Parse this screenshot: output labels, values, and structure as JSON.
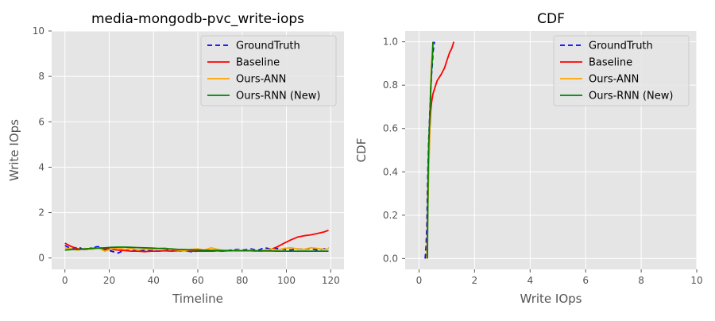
{
  "colors": {
    "plot_bg": "#E5E5E5",
    "grid": "#FFFFFF",
    "tick_text": "#555555",
    "label_text": "#555555",
    "title_text": "#000000",
    "legend_bg": "#E5E5E5",
    "legend_border": "#CCCCCC"
  },
  "chart_data": [
    {
      "type": "line",
      "title": "media-mongodb-pvc_write-iops",
      "xlabel": "Timeline",
      "ylabel": "Write IOps",
      "xlim": [
        -6,
        126
      ],
      "ylim": [
        -0.5,
        10
      ],
      "xticks": [
        0,
        20,
        40,
        60,
        80,
        100,
        120
      ],
      "yticks": [
        0,
        2,
        4,
        6,
        8,
        10
      ],
      "grid": true,
      "legend_position": "top-right",
      "series": [
        {
          "name": "GroundTruth",
          "color": "#0000FF",
          "style": "dashed",
          "x": [
            0,
            3,
            6,
            9,
            12,
            15,
            18,
            21,
            24,
            27,
            30,
            33,
            36,
            39,
            42,
            45,
            48,
            51,
            54,
            57,
            60,
            63,
            66,
            69,
            72,
            75,
            78,
            81,
            84,
            87,
            90,
            93,
            96,
            99,
            102,
            105,
            108,
            111,
            114,
            117,
            119
          ],
          "y": [
            0.55,
            0.4,
            0.48,
            0.35,
            0.45,
            0.5,
            0.38,
            0.3,
            0.22,
            0.35,
            0.3,
            0.38,
            0.32,
            0.35,
            0.3,
            0.32,
            0.35,
            0.3,
            0.33,
            0.28,
            0.3,
            0.35,
            0.3,
            0.32,
            0.3,
            0.35,
            0.38,
            0.35,
            0.4,
            0.33,
            0.45,
            0.4,
            0.42,
            0.38,
            0.35,
            0.4,
            0.38,
            0.42,
            0.35,
            0.4,
            0.45
          ]
        },
        {
          "name": "Baseline",
          "color": "#FF0000",
          "style": "solid",
          "x": [
            0,
            3,
            6,
            9,
            12,
            15,
            18,
            21,
            24,
            27,
            30,
            33,
            36,
            39,
            42,
            45,
            48,
            51,
            54,
            57,
            60,
            63,
            66,
            69,
            72,
            75,
            78,
            81,
            84,
            87,
            90,
            93,
            96,
            99,
            102,
            105,
            108,
            111,
            114,
            117,
            119
          ],
          "y": [
            0.65,
            0.5,
            0.4,
            0.38,
            0.42,
            0.45,
            0.42,
            0.38,
            0.35,
            0.33,
            0.3,
            0.3,
            0.28,
            0.3,
            0.3,
            0.32,
            0.3,
            0.32,
            0.32,
            0.3,
            0.3,
            0.3,
            0.3,
            0.32,
            0.3,
            0.32,
            0.32,
            0.33,
            0.32,
            0.3,
            0.32,
            0.38,
            0.5,
            0.65,
            0.8,
            0.92,
            0.98,
            1.02,
            1.08,
            1.15,
            1.22
          ]
        },
        {
          "name": "Ours-ANN",
          "color": "#FFA500",
          "style": "solid",
          "x": [
            0,
            3,
            6,
            9,
            12,
            15,
            18,
            21,
            24,
            27,
            30,
            33,
            36,
            39,
            42,
            45,
            48,
            51,
            54,
            57,
            60,
            63,
            66,
            69,
            72,
            75,
            78,
            81,
            84,
            87,
            90,
            93,
            96,
            99,
            102,
            105,
            108,
            111,
            114,
            117,
            119
          ],
          "y": [
            0.45,
            0.4,
            0.35,
            0.42,
            0.38,
            0.45,
            0.3,
            0.4,
            0.45,
            0.38,
            0.42,
            0.35,
            0.4,
            0.38,
            0.42,
            0.45,
            0.38,
            0.35,
            0.32,
            0.38,
            0.4,
            0.35,
            0.45,
            0.38,
            0.32,
            0.3,
            0.35,
            0.32,
            0.35,
            0.3,
            0.35,
            0.4,
            0.35,
            0.42,
            0.45,
            0.4,
            0.38,
            0.45,
            0.42,
            0.38,
            0.4
          ]
        },
        {
          "name": "Ours-RNN (New)",
          "color": "#008000",
          "style": "solid",
          "x": [
            0,
            3,
            6,
            9,
            12,
            15,
            18,
            21,
            24,
            27,
            30,
            33,
            36,
            39,
            42,
            45,
            48,
            51,
            54,
            57,
            60,
            63,
            66,
            69,
            72,
            75,
            78,
            81,
            84,
            87,
            90,
            93,
            96,
            99,
            102,
            105,
            108,
            111,
            114,
            117,
            119
          ],
          "y": [
            0.35,
            0.37,
            0.38,
            0.4,
            0.42,
            0.43,
            0.45,
            0.47,
            0.48,
            0.48,
            0.47,
            0.46,
            0.45,
            0.44,
            0.42,
            0.41,
            0.4,
            0.38,
            0.37,
            0.36,
            0.35,
            0.34,
            0.34,
            0.33,
            0.33,
            0.33,
            0.32,
            0.32,
            0.32,
            0.32,
            0.31,
            0.31,
            0.3,
            0.3,
            0.3,
            0.3,
            0.3,
            0.3,
            0.3,
            0.3,
            0.3
          ]
        }
      ]
    },
    {
      "type": "line",
      "title": "CDF",
      "xlabel": "Write IOps",
      "ylabel": "CDF",
      "xlim": [
        -0.5,
        10
      ],
      "ylim": [
        -0.05,
        1.05
      ],
      "xticks": [
        0,
        2,
        4,
        6,
        8,
        10
      ],
      "yticks": [
        0.0,
        0.2,
        0.4,
        0.6,
        0.8,
        1.0
      ],
      "grid": true,
      "legend_position": "top-right",
      "series": [
        {
          "name": "GroundTruth",
          "color": "#0000FF",
          "style": "dashed",
          "x": [
            0.22,
            0.25,
            0.28,
            0.3,
            0.32,
            0.35,
            0.38,
            0.4,
            0.42,
            0.45,
            0.48,
            0.5,
            0.55
          ],
          "y": [
            0.0,
            0.05,
            0.15,
            0.3,
            0.42,
            0.55,
            0.65,
            0.72,
            0.78,
            0.85,
            0.9,
            0.95,
            1.0
          ]
        },
        {
          "name": "Baseline",
          "color": "#FF0000",
          "style": "solid",
          "x": [
            0.28,
            0.3,
            0.32,
            0.35,
            0.38,
            0.42,
            0.45,
            0.5,
            0.55,
            0.65,
            0.8,
            0.92,
            1.02,
            1.1,
            1.18,
            1.25
          ],
          "y": [
            0.0,
            0.15,
            0.3,
            0.45,
            0.58,
            0.68,
            0.72,
            0.76,
            0.78,
            0.82,
            0.85,
            0.88,
            0.92,
            0.95,
            0.97,
            1.0
          ]
        },
        {
          "name": "Ours-ANN",
          "color": "#FFA500",
          "style": "solid",
          "x": [
            0.28,
            0.3,
            0.32,
            0.35,
            0.38,
            0.4,
            0.42,
            0.45,
            0.5
          ],
          "y": [
            0.0,
            0.1,
            0.25,
            0.4,
            0.55,
            0.68,
            0.8,
            0.9,
            1.0
          ]
        },
        {
          "name": "Ours-RNN (New)",
          "color": "#008000",
          "style": "solid",
          "x": [
            0.3,
            0.31,
            0.32,
            0.33,
            0.35,
            0.37,
            0.4,
            0.42,
            0.45,
            0.48,
            0.5
          ],
          "y": [
            0.0,
            0.15,
            0.3,
            0.42,
            0.52,
            0.6,
            0.7,
            0.78,
            0.86,
            0.93,
            1.0
          ]
        }
      ]
    }
  ]
}
